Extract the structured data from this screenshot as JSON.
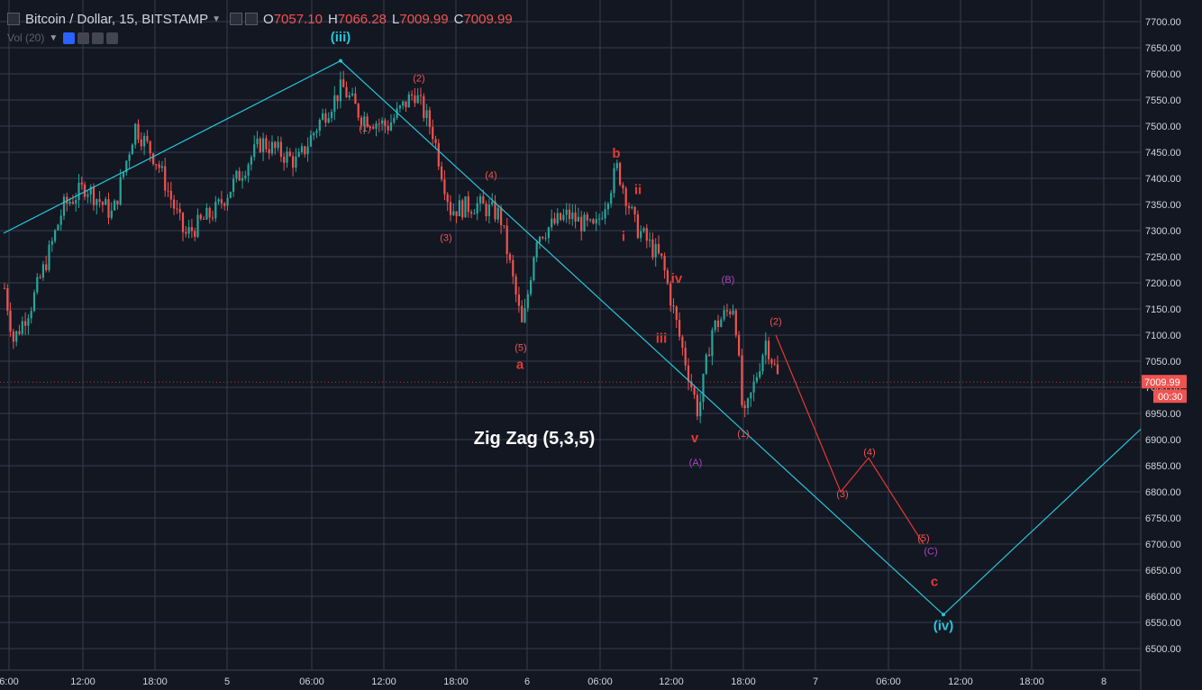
{
  "header": {
    "symbol": "Bitcoin / Dollar, 15, BITSTAMP",
    "open_label": "O",
    "open": "7057.10",
    "high_label": "H",
    "high": "7066.28",
    "low_label": "L",
    "low": "7009.99",
    "close_label": "C",
    "close": "7009.99"
  },
  "volume_indicator": {
    "label": "Vol (20)"
  },
  "price_axis": {
    "labels": [
      "7700.00",
      "7650.00",
      "7600.00",
      "7550.00",
      "7500.00",
      "7450.00",
      "7400.00",
      "7350.00",
      "7300.00",
      "7250.00",
      "7200.00",
      "7150.00",
      "7100.00",
      "7050.00",
      "7000.00",
      "6950.00",
      "6900.00",
      "6850.00",
      "6800.00",
      "6750.00",
      "6700.00",
      "6650.00",
      "6600.00",
      "6550.00",
      "6500.00"
    ],
    "current_price": "7009.99",
    "countdown": "00:30"
  },
  "time_axis": {
    "labels": [
      "6:00",
      "12:00",
      "18:00",
      "5",
      "06:00",
      "12:00",
      "18:00",
      "6",
      "06:00",
      "12:00",
      "18:00",
      "7",
      "06:00",
      "12:00",
      "18:00",
      "8"
    ]
  },
  "chart_data": {
    "type": "candlestick",
    "title": "Zig Zag (5,3,5)",
    "y_range": [
      6470,
      7730
    ],
    "wave_labels": [
      {
        "text": "(iii)",
        "price": 7645,
        "color": "#26c6da"
      },
      {
        "text": "(2)",
        "price": 7585,
        "color": "#ef5350"
      },
      {
        "text": "(1)",
        "price": 7490,
        "color": "#ef5350"
      },
      {
        "text": "b",
        "price": 7440,
        "color": "#e53935"
      },
      {
        "text": "(4)",
        "price": 7400,
        "color": "#ef5350"
      },
      {
        "text": "ii",
        "price": 7370,
        "color": "#e53935"
      },
      {
        "text": "(3)",
        "price": 7280,
        "color": "#ef5350"
      },
      {
        "text": "i",
        "price": 7280,
        "color": "#e53935"
      },
      {
        "text": "iv",
        "price": 7200,
        "color": "#e53935"
      },
      {
        "text": "(B)",
        "price": 7200,
        "color": "#ab47bc"
      },
      {
        "text": "(2)",
        "price": 7120,
        "color": "#ef5350"
      },
      {
        "text": "iii",
        "price": 7085,
        "color": "#e53935"
      },
      {
        "text": "(5)",
        "price": 7070,
        "color": "#ef5350"
      },
      {
        "text": "a",
        "price": 7035,
        "color": "#e53935"
      },
      {
        "text": "v",
        "price": 6895,
        "color": "#e53935"
      },
      {
        "text": "(1)",
        "price": 6905,
        "color": "#ef5350"
      },
      {
        "text": "(4)",
        "price": 6870,
        "color": "#ef5350"
      },
      {
        "text": "(A)",
        "price": 6850,
        "color": "#ab47bc"
      },
      {
        "text": "(3)",
        "price": 6790,
        "color": "#ef5350"
      },
      {
        "text": "(5)",
        "price": 6705,
        "color": "#ef5350"
      },
      {
        "text": "(C)",
        "price": 6680,
        "color": "#ab47bc"
      },
      {
        "text": "c",
        "price": 6620,
        "color": "#e53935"
      },
      {
        "text": "(iv)",
        "price": 6535,
        "color": "#26c6da"
      }
    ],
    "cyan_path_prices": [
      7295,
      7625,
      6565,
      6920
    ],
    "red_projection_prices": [
      7100,
      6800,
      6865,
      6700
    ],
    "colors": {
      "up": "#26a69a",
      "down": "#ef5350",
      "cyan": "#26c6da",
      "red": "#e53935",
      "purple": "#ab47bc",
      "grid": "#363c4e",
      "background": "#131722"
    }
  }
}
